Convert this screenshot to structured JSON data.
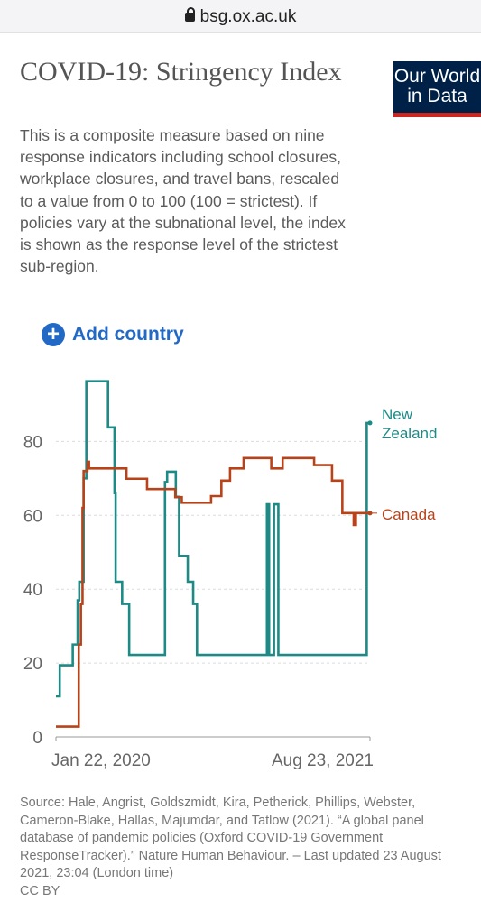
{
  "browser": {
    "url": "bsg.ox.ac.uk"
  },
  "header": {
    "title": "COVID-19: Stringency Index",
    "logo_line1": "Our World",
    "logo_line2": "in Data"
  },
  "description": "This is a composite measure based on nine response indicators including school closures, workplace closures, and travel bans, rescaled to a value from 0 to 100 (100 = strictest). If policies vary at the subnational level, the index is shown as the response level of the strictest sub-region.",
  "controls": {
    "add_country_label": "Add country",
    "add_country_icon": "plus-circle-icon"
  },
  "colors": {
    "new_zealand": "#1d8a86",
    "canada": "#b8431a",
    "accent": "#2269c6"
  },
  "source_text": "Source: Hale, Angrist, Goldszmidt, Kira, Petherick, Phillips, Webster, Cameron-Blake, Hallas, Majumdar, and Tatlow (2021). “A global panel database of pandemic policies (Oxford COVID-19 Government ResponseTracker).” Nature Human Behaviour. – Last updated 23 August 2021, 23:04 (London time)",
  "license": "CC BY",
  "chart_data": {
    "type": "line",
    "title": "",
    "xlabel": "",
    "ylabel": "",
    "x_range": [
      "2020-01-22",
      "2021-08-23"
    ],
    "x_ticks": [
      "Jan 22, 2020",
      "Aug 23, 2021"
    ],
    "y_ticks": [
      0,
      20,
      40,
      60,
      80
    ],
    "ylim": [
      0,
      97
    ],
    "grid": "horizontal dashed",
    "series": [
      {
        "name": "New Zealand",
        "color": "#1d8a86",
        "points": [
          [
            "2020-01-22",
            11
          ],
          [
            "2020-01-29",
            11
          ],
          [
            "2020-01-29",
            19.4
          ],
          [
            "2020-02-22",
            19.4
          ],
          [
            "2020-02-22",
            25
          ],
          [
            "2020-03-02",
            25
          ],
          [
            "2020-03-02",
            37
          ],
          [
            "2020-03-05",
            37
          ],
          [
            "2020-03-05",
            42
          ],
          [
            "2020-03-13",
            42
          ],
          [
            "2020-03-13",
            70
          ],
          [
            "2020-03-18",
            70
          ],
          [
            "2020-03-18",
            96.3
          ],
          [
            "2020-04-27",
            96.3
          ],
          [
            "2020-04-27",
            83.8
          ],
          [
            "2020-05-09",
            83.8
          ],
          [
            "2020-05-09",
            66
          ],
          [
            "2020-05-11",
            66
          ],
          [
            "2020-05-11",
            42
          ],
          [
            "2020-05-23",
            42
          ],
          [
            "2020-05-23",
            36
          ],
          [
            "2020-06-05",
            36
          ],
          [
            "2020-06-05",
            22.2
          ],
          [
            "2020-08-10",
            22.2
          ],
          [
            "2020-08-10",
            69
          ],
          [
            "2020-08-14",
            69
          ],
          [
            "2020-08-14",
            71.8
          ],
          [
            "2020-08-30",
            71.8
          ],
          [
            "2020-08-30",
            65
          ],
          [
            "2020-09-05",
            65
          ],
          [
            "2020-09-05",
            49
          ],
          [
            "2020-09-21",
            49
          ],
          [
            "2020-09-21",
            42
          ],
          [
            "2020-10-01",
            42
          ],
          [
            "2020-10-01",
            36
          ],
          [
            "2020-10-08",
            36
          ],
          [
            "2020-10-08",
            22.2
          ],
          [
            "2021-02-14",
            22.2
          ],
          [
            "2021-02-14",
            63
          ],
          [
            "2021-02-18",
            63
          ],
          [
            "2021-02-18",
            22.2
          ],
          [
            "2021-02-27",
            22.2
          ],
          [
            "2021-02-27",
            63
          ],
          [
            "2021-03-07",
            63
          ],
          [
            "2021-03-07",
            22.2
          ],
          [
            "2021-08-17",
            22.2
          ],
          [
            "2021-08-17",
            85
          ],
          [
            "2021-08-23",
            85
          ]
        ]
      },
      {
        "name": "Canada",
        "color": "#b8431a",
        "points": [
          [
            "2020-01-22",
            2.8
          ],
          [
            "2020-03-04",
            2.8
          ],
          [
            "2020-03-04",
            25
          ],
          [
            "2020-03-08",
            25
          ],
          [
            "2020-03-08",
            36
          ],
          [
            "2020-03-11",
            36
          ],
          [
            "2020-03-11",
            62
          ],
          [
            "2020-03-13",
            62
          ],
          [
            "2020-03-13",
            72
          ],
          [
            "2020-03-20",
            72
          ],
          [
            "2020-03-20",
            74.5
          ],
          [
            "2020-03-23",
            74.5
          ],
          [
            "2020-03-23",
            72.7
          ],
          [
            "2020-05-31",
            72.7
          ],
          [
            "2020-05-31",
            69.9
          ],
          [
            "2020-07-08",
            69.9
          ],
          [
            "2020-07-08",
            67.1
          ],
          [
            "2020-08-29",
            67.1
          ],
          [
            "2020-08-29",
            64.9
          ],
          [
            "2020-09-10",
            64.9
          ],
          [
            "2020-09-10",
            63.4
          ],
          [
            "2020-11-03",
            63.4
          ],
          [
            "2020-11-03",
            65.2
          ],
          [
            "2020-11-22",
            65.2
          ],
          [
            "2020-11-22",
            69.4
          ],
          [
            "2020-12-08",
            69.4
          ],
          [
            "2020-12-08",
            72.7
          ],
          [
            "2021-01-02",
            72.7
          ],
          [
            "2021-01-02",
            75.5
          ],
          [
            "2021-02-22",
            75.5
          ],
          [
            "2021-02-22",
            72.7
          ],
          [
            "2021-03-15",
            72.7
          ],
          [
            "2021-03-15",
            75.5
          ],
          [
            "2021-05-12",
            75.5
          ],
          [
            "2021-05-12",
            73.6
          ],
          [
            "2021-06-14",
            73.6
          ],
          [
            "2021-06-14",
            69.4
          ],
          [
            "2021-07-03",
            69.4
          ],
          [
            "2021-07-03",
            60.6
          ],
          [
            "2021-07-24",
            60.6
          ],
          [
            "2021-07-24",
            57.4
          ],
          [
            "2021-07-28",
            57.4
          ],
          [
            "2021-07-28",
            60.6
          ],
          [
            "2021-08-23",
            60.6
          ]
        ]
      }
    ]
  }
}
